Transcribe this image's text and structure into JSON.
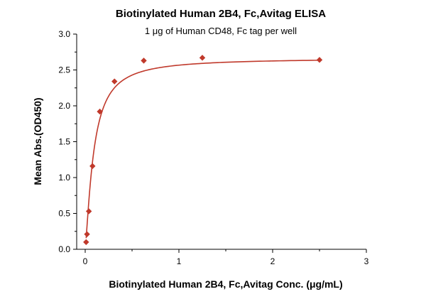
{
  "chart_data": {
    "type": "scatter",
    "title": "Biotinylated Human 2B4, Fc,Avitag ELISA",
    "subtitle": "1 μg of Human CD48, Fc tag per well",
    "xlabel": "Biotinylated Human 2B4, Fc,Avitag Conc. (μg/mL)",
    "ylabel": "Mean Abs.(OD450)",
    "xlim": [
      0,
      3
    ],
    "ylim": [
      0,
      3
    ],
    "xticks": [
      0,
      1,
      2,
      3
    ],
    "yticks": [
      0.0,
      0.5,
      1.0,
      1.5,
      2.0,
      2.5,
      3.0
    ],
    "ytick_labels": [
      "0.0",
      "0.5",
      "1.0",
      "1.5",
      "2.0",
      "2.5",
      "3.0"
    ],
    "xtick_labels": [
      "0",
      "1",
      "2",
      "3"
    ],
    "grid": false,
    "series": [
      {
        "x": [
          0.0098,
          0.0195,
          0.039,
          0.078,
          0.156,
          0.3125,
          0.625,
          1.25,
          2.5
        ],
        "y": [
          0.1,
          0.21,
          0.53,
          1.16,
          1.92,
          2.34,
          2.63,
          2.67,
          2.64
        ],
        "marker": "diamond",
        "fit_curve": true
      }
    ],
    "colors": {
      "series": "#c0392b",
      "axis": "#000000"
    }
  }
}
